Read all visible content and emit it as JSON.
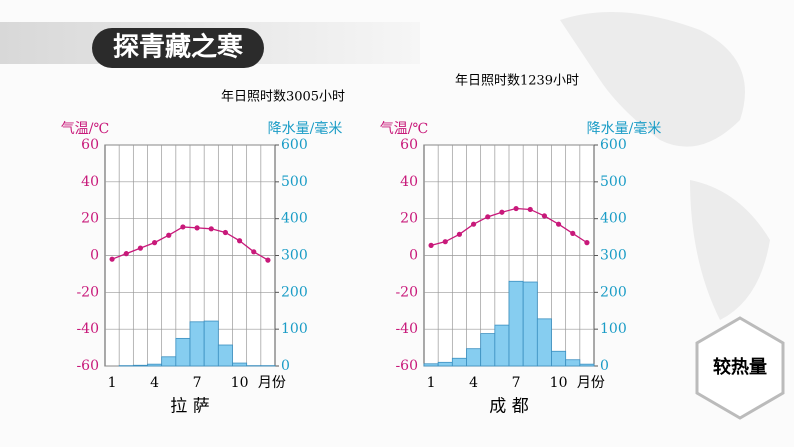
{
  "header": {
    "title": "探青藏之寒"
  },
  "button": {
    "label": "较热量"
  },
  "chart_data": [
    {
      "type": "combo",
      "title": "拉 萨",
      "annotation": "年日照时数3005小时",
      "categories": [
        "1",
        null,
        null,
        "4",
        null,
        null,
        "7",
        null,
        null,
        "10",
        null,
        null
      ],
      "x_label": "月份",
      "y_label": "气温/℃",
      "y2_label": "降水量/毫米",
      "ylim": [
        -60,
        60
      ],
      "yticks": [
        -60,
        -40,
        -20,
        0,
        20,
        40,
        60
      ],
      "y2lim": [
        0,
        600
      ],
      "y2ticks": [
        0,
        100,
        200,
        300,
        400,
        500,
        600
      ],
      "series": [
        {
          "type": "line",
          "color": "#c8197a",
          "values": [
            -2,
            1,
            4,
            7,
            11,
            15.5,
            15,
            14.5,
            12.5,
            8,
            2,
            -2.5
          ]
        },
        {
          "type": "bar",
          "axis": "y2",
          "color": "#86cdf0",
          "values": [
            0,
            1,
            2,
            5,
            25,
            75,
            120,
            122,
            57,
            8,
            1,
            1
          ]
        }
      ]
    },
    {
      "type": "combo",
      "title": "成 都",
      "annotation": "年日照时数1239小时",
      "categories": [
        "1",
        null,
        null,
        "4",
        null,
        null,
        "7",
        null,
        null,
        "10",
        null,
        null
      ],
      "x_label": "月份",
      "y_label": "气温/℃",
      "y2_label": "降水量/毫米",
      "ylim": [
        -60,
        60
      ],
      "yticks": [
        -60,
        -40,
        -20,
        0,
        20,
        40,
        60
      ],
      "y2lim": [
        0,
        600
      ],
      "y2ticks": [
        0,
        100,
        200,
        300,
        400,
        500,
        600
      ],
      "series": [
        {
          "type": "line",
          "color": "#c8197a",
          "values": [
            5.5,
            7.5,
            11.5,
            17,
            21,
            23.5,
            25.5,
            25,
            21.5,
            17,
            12,
            7
          ]
        },
        {
          "type": "bar",
          "axis": "y2",
          "color": "#86cdf0",
          "values": [
            6,
            10,
            21,
            47,
            88,
            111,
            230,
            228,
            128,
            40,
            17,
            5
          ]
        }
      ]
    }
  ]
}
